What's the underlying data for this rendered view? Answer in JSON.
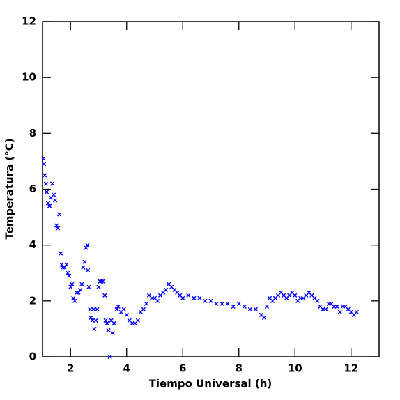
{
  "chart_data": {
    "type": "scatter",
    "x_label": "Tiempo Universal (h)",
    "y_label": "Temperatura (°C)",
    "xlim": [
      1,
      13
    ],
    "ylim": [
      0,
      12
    ],
    "xticks": [
      2,
      4,
      6,
      8,
      10,
      12
    ],
    "yticks": [
      0,
      2,
      4,
      6,
      8,
      10,
      12
    ],
    "color": "#0000ff",
    "marker": "x",
    "x": [
      1.03,
      1.05,
      1.08,
      1.12,
      1.15,
      1.2,
      1.25,
      1.3,
      1.35,
      1.4,
      1.45,
      1.5,
      1.55,
      1.6,
      1.65,
      1.68,
      1.72,
      1.78,
      1.85,
      1.9,
      1.95,
      2.0,
      2.05,
      2.1,
      2.15,
      2.22,
      2.28,
      2.35,
      2.4,
      2.45,
      2.5,
      2.55,
      2.6,
      2.62,
      2.65,
      2.7,
      2.72,
      2.78,
      2.82,
      2.85,
      2.9,
      2.95,
      3.0,
      3.05,
      3.1,
      3.15,
      3.22,
      3.25,
      3.3,
      3.35,
      3.4,
      3.45,
      3.5,
      3.55,
      3.65,
      3.7,
      3.8,
      3.9,
      4.0,
      4.1,
      4.2,
      4.3,
      4.4,
      4.5,
      4.6,
      4.7,
      4.8,
      4.9,
      5.0,
      5.1,
      5.2,
      5.3,
      5.4,
      5.5,
      5.6,
      5.7,
      5.8,
      5.9,
      6.0,
      6.2,
      6.4,
      6.6,
      6.8,
      7.0,
      7.2,
      7.4,
      7.6,
      7.8,
      8.0,
      8.2,
      8.4,
      8.6,
      8.8,
      8.9,
      9.0,
      9.1,
      9.2,
      9.3,
      9.4,
      9.5,
      9.6,
      9.7,
      9.8,
      9.9,
      10.0,
      10.1,
      10.2,
      10.3,
      10.4,
      10.5,
      10.6,
      10.7,
      10.8,
      10.9,
      11.0,
      11.1,
      11.2,
      11.3,
      11.4,
      11.5,
      11.6,
      11.7,
      11.8,
      11.9,
      12.0,
      12.1,
      12.2
    ],
    "values": [
      7.1,
      6.9,
      6.5,
      6.2,
      5.9,
      5.5,
      5.4,
      5.7,
      6.2,
      5.8,
      5.6,
      4.7,
      4.6,
      5.1,
      3.7,
      3.3,
      3.2,
      3.2,
      3.3,
      3.0,
      2.9,
      2.5,
      2.6,
      2.1,
      2.0,
      2.3,
      2.3,
      2.4,
      2.6,
      3.2,
      3.4,
      3.9,
      4.0,
      3.1,
      2.5,
      1.7,
      1.4,
      1.3,
      1.7,
      1.0,
      1.3,
      1.7,
      2.5,
      2.7,
      2.7,
      2.7,
      2.2,
      1.3,
      1.2,
      0.95,
      0.0,
      1.3,
      0.85,
      1.2,
      1.7,
      1.8,
      1.6,
      1.7,
      1.5,
      1.3,
      1.2,
      1.2,
      1.3,
      1.6,
      1.7,
      1.9,
      2.2,
      2.1,
      2.1,
      2.0,
      2.2,
      2.3,
      2.4,
      2.6,
      2.5,
      2.4,
      2.3,
      2.2,
      2.1,
      2.2,
      2.1,
      2.1,
      2.0,
      2.0,
      1.9,
      1.9,
      1.9,
      1.8,
      1.9,
      1.8,
      1.7,
      1.7,
      1.5,
      1.4,
      1.8,
      2.1,
      2.0,
      2.1,
      2.2,
      2.3,
      2.2,
      2.1,
      2.2,
      2.3,
      2.2,
      2.0,
      2.1,
      2.1,
      2.2,
      2.3,
      2.2,
      2.1,
      2.0,
      1.8,
      1.7,
      1.7,
      1.9,
      1.9,
      1.8,
      1.8,
      1.6,
      1.8,
      1.8,
      1.7,
      1.6,
      1.5,
      1.6
    ]
  }
}
